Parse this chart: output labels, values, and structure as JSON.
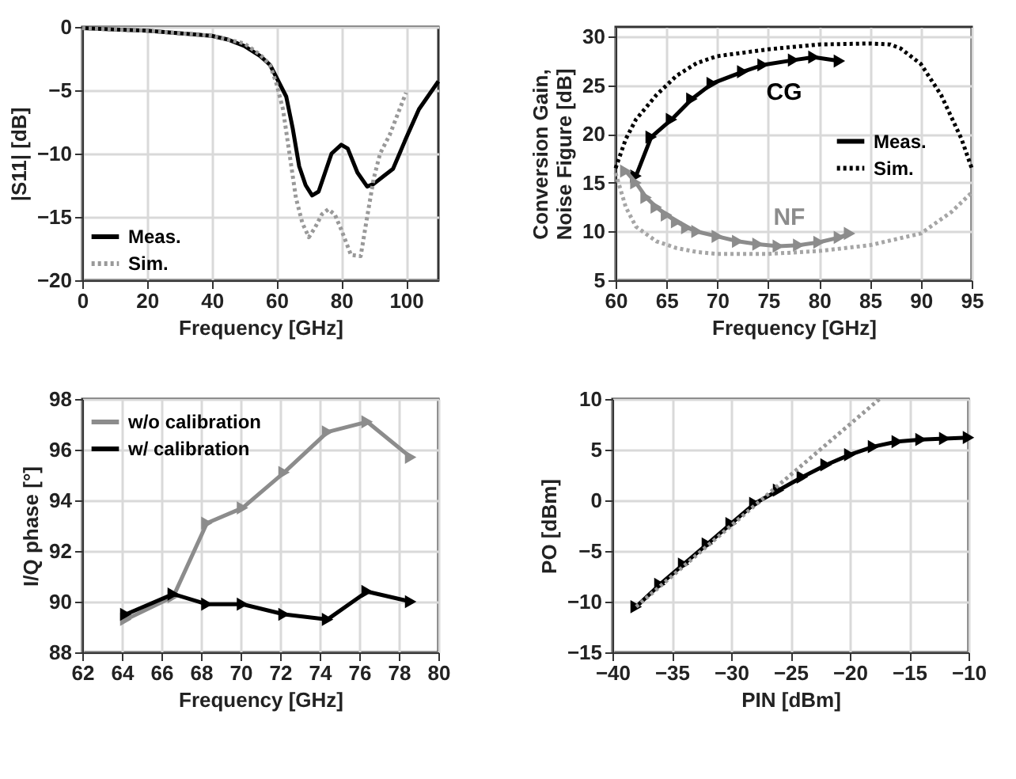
{
  "chart_data": [
    {
      "type": "line",
      "xlabel": "Frequency   [GHz]",
      "ylabel": "|S11|   [dB]",
      "xlim": [
        0,
        110
      ],
      "xticks": [
        0,
        20,
        40,
        60,
        80,
        100
      ],
      "ylim": [
        -20,
        0
      ],
      "yticks": [
        -20,
        -15,
        -10,
        -5,
        0
      ],
      "grid": true,
      "legend": "bottom left",
      "marker": "none",
      "series": [
        {
          "name": "Meas.",
          "color": "#000000",
          "line_style": "solid",
          "x": [
            0,
            10,
            20,
            30,
            40,
            45,
            50,
            55,
            58,
            60,
            63,
            65,
            67,
            69,
            71,
            73,
            75,
            77,
            80,
            82,
            85,
            88,
            90,
            93,
            96,
            100,
            104,
            110
          ],
          "values": [
            -0.1,
            -0.2,
            -0.3,
            -0.5,
            -0.7,
            -1.0,
            -1.5,
            -2.3,
            -3,
            -4.0,
            -5.5,
            -8,
            -11,
            -12.5,
            -13.3,
            -13,
            -11.5,
            -10,
            -9.3,
            -9.6,
            -11.5,
            -12.6,
            -12.4,
            -11.8,
            -11.2,
            -8.8,
            -6.5,
            -4.3
          ]
        },
        {
          "name": "Sim.",
          "color": "#999999",
          "line_style": "dotted",
          "x": [
            0,
            20,
            40,
            50,
            55,
            58,
            60,
            62,
            64,
            66,
            68,
            70,
            72,
            74,
            76,
            78,
            80,
            83,
            86,
            88,
            90,
            92,
            95,
            100
          ],
          "values": [
            -0.1,
            -0.3,
            -0.7,
            -1.3,
            -2.2,
            -3,
            -4.5,
            -6.5,
            -10,
            -13.5,
            -15.5,
            -16.6,
            -15.8,
            -14.8,
            -14.4,
            -14.8,
            -16,
            -18,
            -18.1,
            -15,
            -12,
            -10,
            -8.5,
            -5.2
          ]
        }
      ]
    },
    {
      "type": "line",
      "xlabel": "Frequency   [GHz]",
      "ylabel": "Conversion Gain,\nNoise Figure   [dB]",
      "xlim": [
        60,
        95
      ],
      "xticks": [
        60,
        65,
        70,
        75,
        80,
        85,
        90,
        95
      ],
      "ylim": [
        5,
        31
      ],
      "yticks": [
        5,
        10,
        15,
        20,
        25,
        30
      ],
      "grid": true,
      "legend": "right",
      "annotations": [
        "CG",
        "NF"
      ],
      "series": [
        {
          "name": "Meas.",
          "color": "#000000",
          "line_style": "solid",
          "marker": "triangle",
          "x": [
            62,
            63.5,
            65.5,
            67.5,
            69.5,
            72.5,
            74.5,
            77.5,
            79.5,
            82
          ],
          "values": [
            15.7,
            19.7,
            21.5,
            23.6,
            25.2,
            26.4,
            27.1,
            27.6,
            27.9,
            27.5
          ]
        },
        {
          "name": "Sim.",
          "color": "#000000",
          "line_style": "dotted",
          "marker": "none",
          "x": [
            60,
            61,
            62,
            64,
            66,
            68,
            70,
            75,
            80,
            85,
            87,
            88,
            90,
            92,
            94,
            95
          ],
          "values": [
            16.5,
            19.5,
            21.5,
            24,
            26,
            27.3,
            28,
            28.7,
            29.2,
            29.3,
            29.2,
            28.8,
            27.2,
            24,
            19.5,
            16.5
          ]
        },
        {
          "color": "#8c8c8c",
          "line_style": "solid",
          "marker": "triangle",
          "x": [
            61,
            62,
            63,
            64,
            65,
            66,
            67,
            68,
            70,
            72,
            74,
            76,
            78,
            80,
            82,
            83
          ],
          "values": [
            16.2,
            15,
            13.5,
            12.5,
            11.7,
            11,
            10.4,
            10,
            9.5,
            9,
            8.7,
            8.5,
            8.6,
            8.9,
            9.4,
            9.8
          ]
        },
        {
          "color": "#a6a6a6",
          "line_style": "dotted",
          "marker": "none",
          "x": [
            60,
            61,
            62,
            64,
            66,
            68,
            70,
            75,
            80,
            85,
            90,
            93,
            95
          ],
          "values": [
            16,
            12.5,
            10.5,
            9,
            8.3,
            7.9,
            7.7,
            7.7,
            8,
            8.6,
            9.8,
            12,
            14
          ]
        }
      ]
    },
    {
      "type": "line",
      "xlabel": "Frequency   [GHz]",
      "ylabel": "I/Q phase   [°]",
      "xlim": [
        62,
        80
      ],
      "xticks": [
        62,
        64,
        66,
        68,
        70,
        72,
        74,
        76,
        78,
        80
      ],
      "ylim": [
        88,
        98
      ],
      "yticks": [
        88,
        90,
        92,
        94,
        96,
        98
      ],
      "grid": true,
      "legend": "top left",
      "marker": "triangle",
      "series": [
        {
          "name": "w/o calibration",
          "color": "#8c8c8c",
          "line_style": "solid",
          "x": [
            64.2,
            66.6,
            68.3,
            70.1,
            72.2,
            74.4,
            76.4,
            78.6
          ],
          "values": [
            89.3,
            90.2,
            93.1,
            93.7,
            95.1,
            96.7,
            97.1,
            95.7
          ]
        },
        {
          "name": "w/ calibration",
          "color": "#000000",
          "line_style": "solid",
          "x": [
            64.2,
            66.6,
            68.3,
            70.1,
            72.2,
            74.4,
            76.4,
            78.6
          ],
          "values": [
            89.5,
            90.3,
            89.9,
            89.9,
            89.5,
            89.3,
            90.4,
            90.0
          ]
        }
      ]
    },
    {
      "type": "line",
      "xlabel": "PIN   [dBm]",
      "ylabel": "PO   [dBm]",
      "xlim": [
        -40,
        -10
      ],
      "xticks": [
        -40,
        -35,
        -30,
        -25,
        -20,
        -15,
        -10
      ],
      "ylim": [
        -15,
        10
      ],
      "yticks": [
        -15,
        -10,
        -5,
        0,
        5,
        10
      ],
      "grid": true,
      "legend": false,
      "series": [
        {
          "color": "#000000",
          "line_style": "solid",
          "marker": "triangle",
          "x": [
            -38,
            -36,
            -34,
            -32,
            -30,
            -28,
            -26,
            -24,
            -22,
            -20,
            -18,
            -16,
            -14,
            -12,
            -10
          ],
          "values": [
            -10.5,
            -8.3,
            -6.3,
            -4.3,
            -2.3,
            -0.3,
            1.0,
            2.3,
            3.5,
            4.5,
            5.3,
            5.8,
            6.0,
            6.1,
            6.2
          ]
        },
        {
          "color": "#999999",
          "line_style": "dotted",
          "marker": "none",
          "x": [
            -38,
            -17.5
          ],
          "values": [
            -10.5,
            10
          ]
        }
      ]
    }
  ]
}
